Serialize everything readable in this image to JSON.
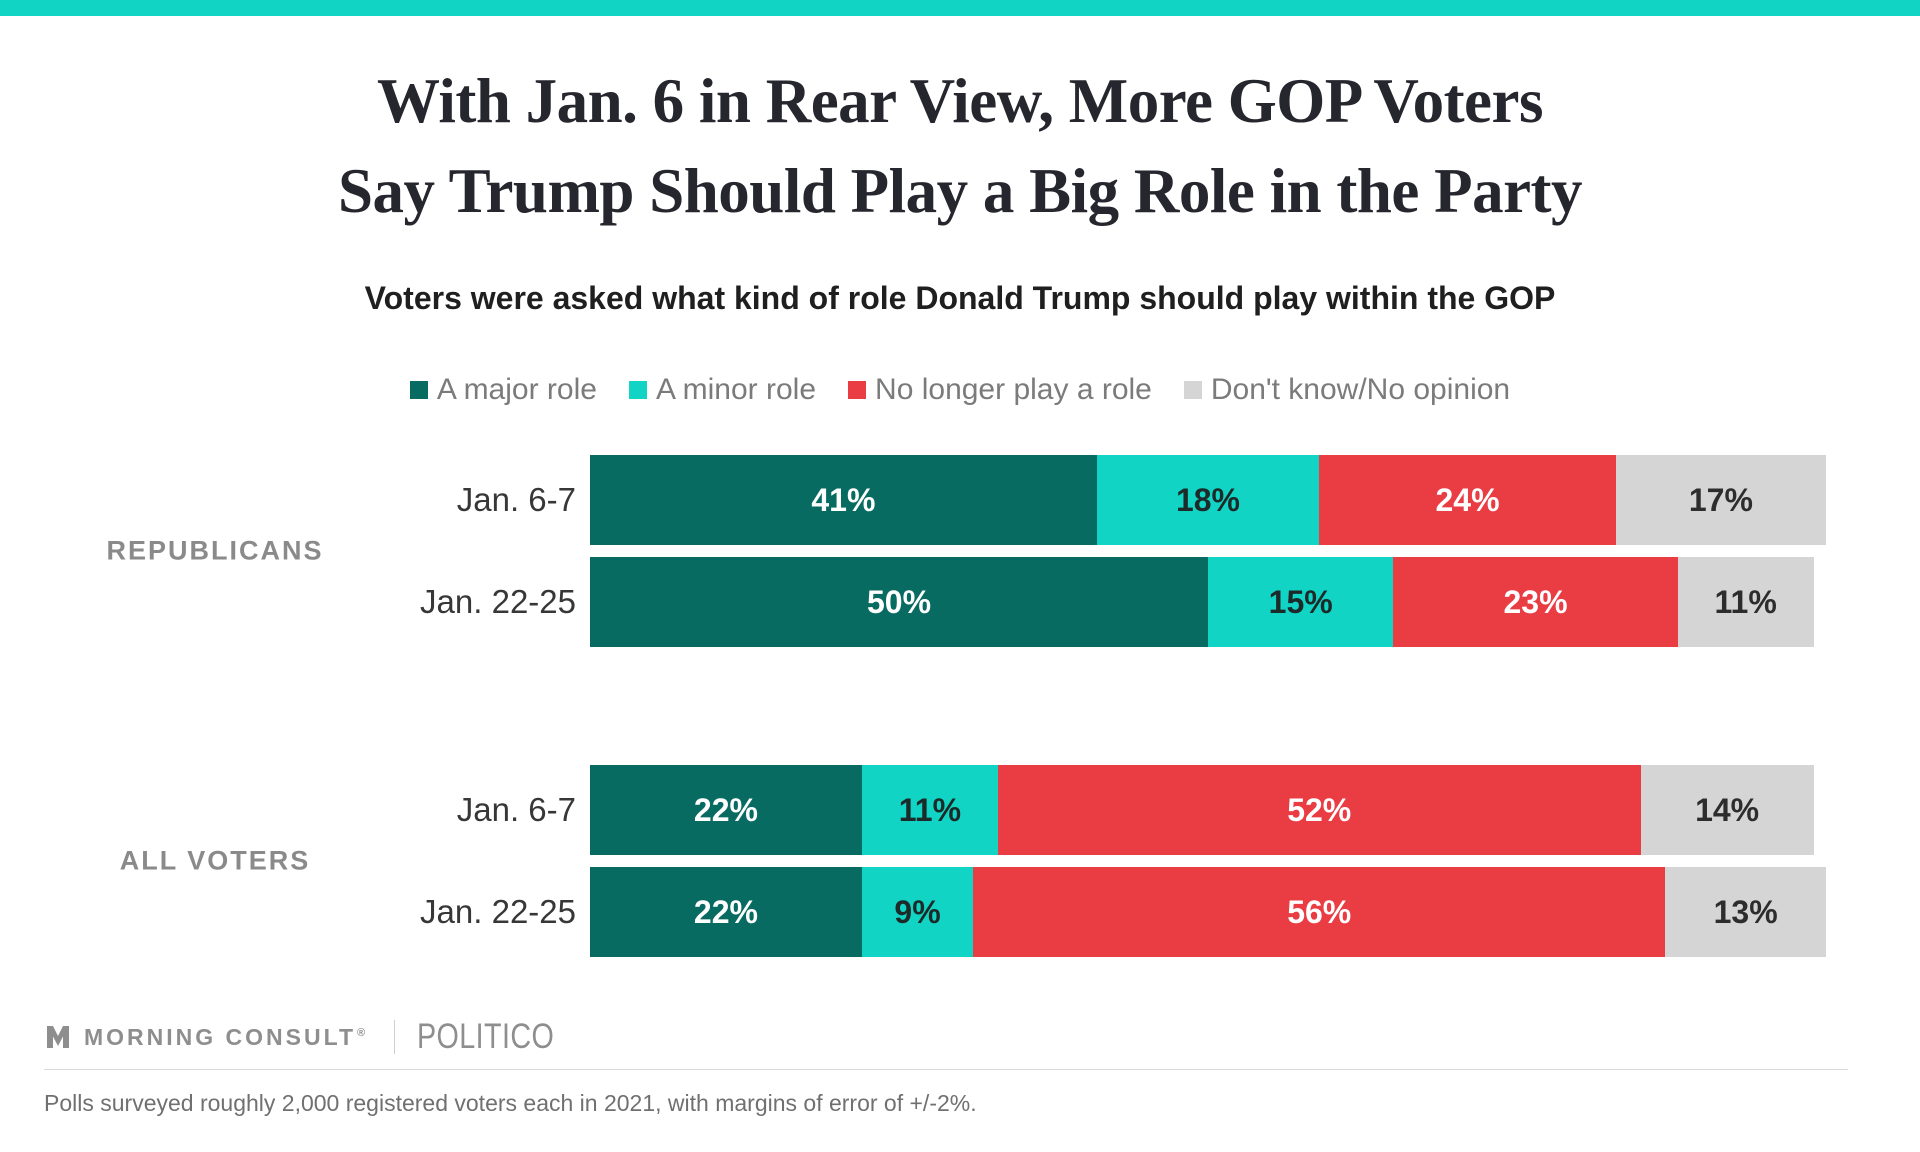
{
  "page": {
    "accent_color": "#12D4C5",
    "background": "#FFFFFF"
  },
  "header": {
    "title_lines": [
      "With Jan. 6 in Rear View, More GOP Voters",
      "Say Trump Should Play a Big Role in the Party"
    ],
    "subtitle": "Voters were asked what kind of role Donald Trump should play within the GOP"
  },
  "chart_data": {
    "type": "bar",
    "orientation": "horizontal",
    "stacked": true,
    "unit": "%",
    "xlim": [
      0,
      100
    ],
    "legend_position": "top-center",
    "title": "With Jan. 6 in Rear View, More GOP Voters Say Trump Should Play a Big Role in the Party",
    "subtitle": "Voters were asked what kind of role Donald Trump should play within the GOP",
    "series": [
      {
        "name": "A major role",
        "color": "#086B61",
        "label_color": "#FFFFFF"
      },
      {
        "name": "A minor role",
        "color": "#12D4C5",
        "label_color": "#1C2B29"
      },
      {
        "name": "No longer play a role",
        "color": "#E93C43",
        "label_color": "#FFFFFF"
      },
      {
        "name": "Don't know/No opinion",
        "color": "#D5D5D5",
        "label_color": "#2D2D2D"
      }
    ],
    "groups": [
      {
        "label": "REPUBLICANS",
        "rows": [
          {
            "label": "Jan. 6-7",
            "values": [
              41,
              18,
              24,
              17
            ]
          },
          {
            "label": "Jan. 22-25",
            "values": [
              50,
              15,
              23,
              11
            ]
          }
        ]
      },
      {
        "label": "ALL VOTERS",
        "rows": [
          {
            "label": "Jan. 6-7",
            "values": [
              22,
              11,
              52,
              14
            ]
          },
          {
            "label": "Jan. 22-25",
            "values": [
              22,
              9,
              56,
              13
            ]
          }
        ]
      }
    ]
  },
  "footer": {
    "brand": "MORNING CONSULT",
    "brand_reg": "®",
    "partner": "POLITICO",
    "note": "Polls surveyed roughly 2,000 registered voters each in 2021, with margins of error of +/-2%."
  }
}
